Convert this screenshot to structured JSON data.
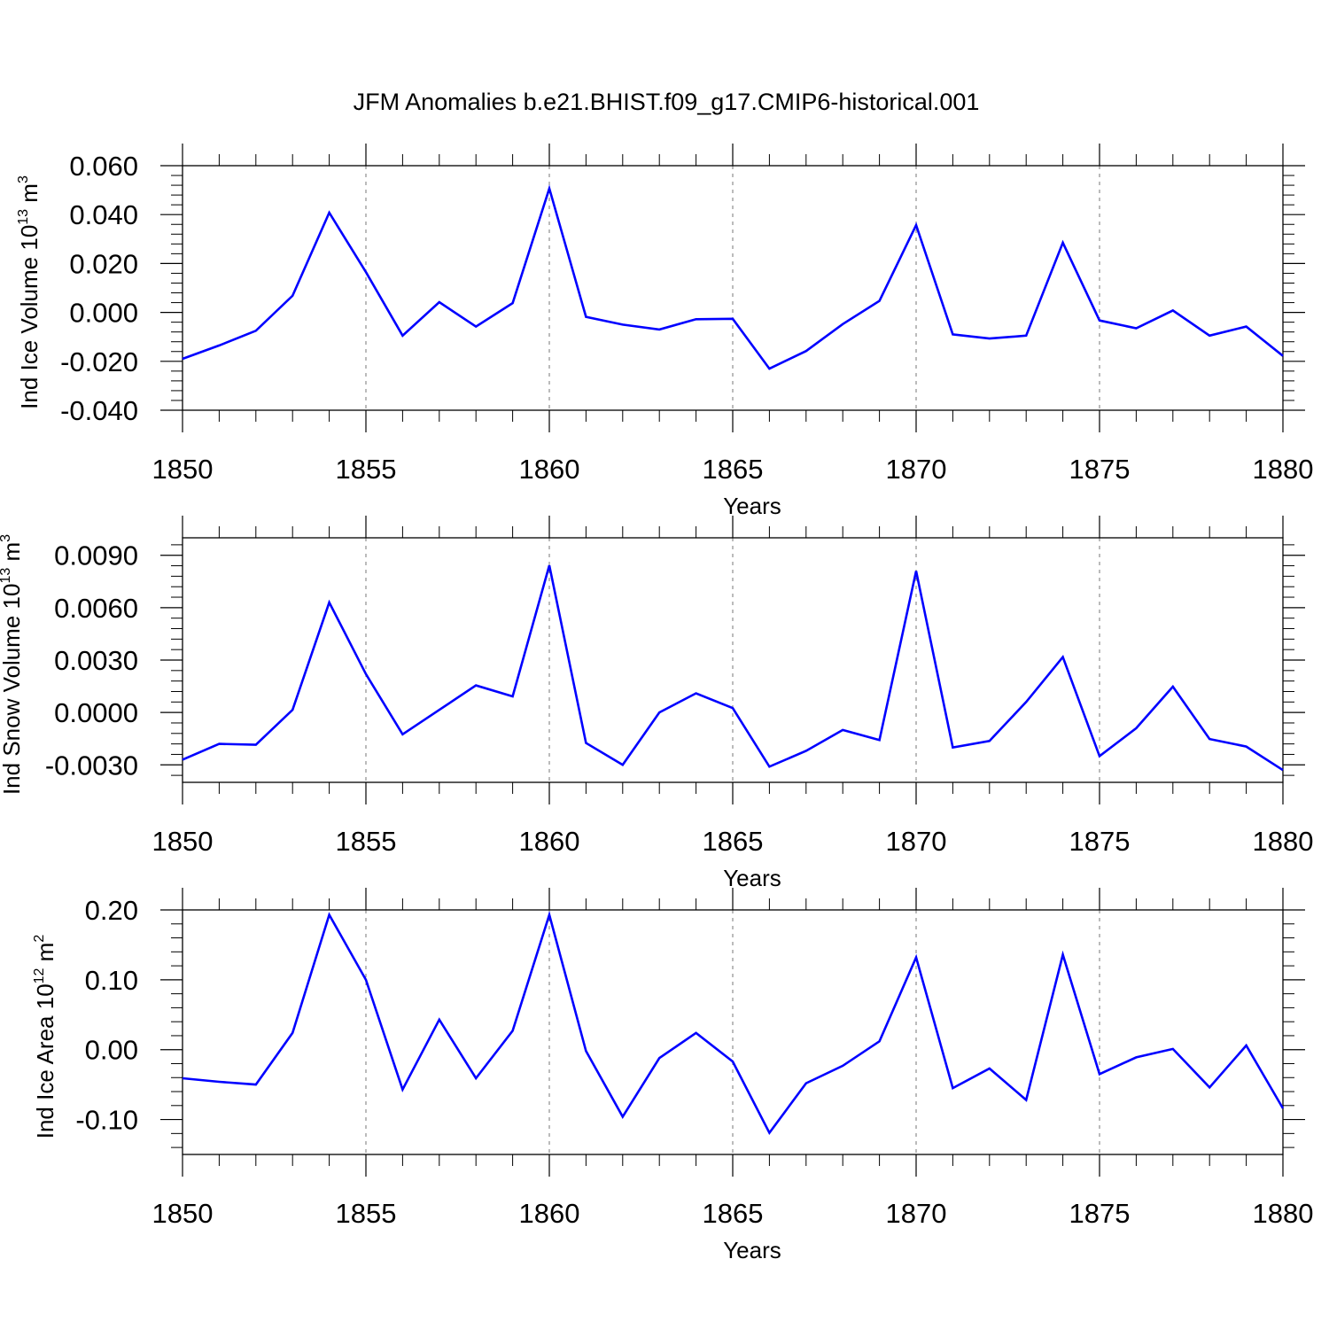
{
  "title": "JFM Anomalies b.e21.BHIST.f09_g17.CMIP6-historical.001",
  "colors": {
    "series": "#0000ff",
    "axis": "#000000",
    "grid": "#777777"
  },
  "chart_data": [
    {
      "type": "line",
      "ylabel": "Ind Ice Volume 10",
      "ylabel_exp": "13",
      "ylabel_unit": " m",
      "ylabel_unit_exp": "3",
      "xlabel": "Years",
      "xlim": [
        1850,
        1880
      ],
      "ylim": [
        -0.04,
        0.06
      ],
      "yticks": [
        -0.04,
        -0.02,
        0.0,
        0.02,
        0.04,
        0.06
      ],
      "yticklabels": [
        "-0.040",
        "-0.020",
        "0.000",
        "0.020",
        "0.040",
        "0.060"
      ],
      "xticks": [
        1850,
        1855,
        1860,
        1865,
        1870,
        1875,
        1880
      ],
      "xticklabels": [
        "1850",
        "1855",
        "1860",
        "1865",
        "1870",
        "1875",
        "1880"
      ],
      "x": [
        1850,
        1851,
        1852,
        1853,
        1854,
        1855,
        1856,
        1857,
        1858,
        1859,
        1860,
        1861,
        1862,
        1863,
        1864,
        1865,
        1866,
        1867,
        1868,
        1869,
        1870,
        1871,
        1872,
        1873,
        1874,
        1875,
        1876,
        1877,
        1878,
        1879,
        1880
      ],
      "values": [
        -0.019,
        -0.0135,
        -0.0075,
        0.0068,
        0.0408,
        0.0165,
        -0.0095,
        0.0042,
        -0.0058,
        0.0038,
        0.0507,
        -0.0018,
        -0.005,
        -0.007,
        -0.0028,
        -0.0026,
        -0.023,
        -0.0158,
        -0.0048,
        0.0047,
        0.0357,
        -0.009,
        -0.0107,
        -0.0095,
        0.0285,
        -0.0033,
        -0.0065,
        0.0008,
        -0.0095,
        -0.0058,
        -0.0178
      ]
    },
    {
      "type": "line",
      "ylabel": "Ind Snow Volume 10",
      "ylabel_exp": "13",
      "ylabel_unit": " m",
      "ylabel_unit_exp": "3",
      "xlabel": "Years",
      "xlim": [
        1850,
        1880
      ],
      "ylim": [
        -0.004,
        0.01
      ],
      "yticks": [
        -0.003,
        0.0,
        0.003,
        0.006,
        0.009
      ],
      "yticklabels": [
        "-0.0030",
        "0.0000",
        "0.0030",
        "0.0060",
        "0.0090"
      ],
      "xticks": [
        1850,
        1855,
        1860,
        1865,
        1870,
        1875,
        1880
      ],
      "xticklabels": [
        "1850",
        "1855",
        "1860",
        "1865",
        "1870",
        "1875",
        "1880"
      ],
      "x": [
        1850,
        1851,
        1852,
        1853,
        1854,
        1855,
        1856,
        1857,
        1858,
        1859,
        1860,
        1861,
        1862,
        1863,
        1864,
        1865,
        1866,
        1867,
        1868,
        1869,
        1870,
        1871,
        1872,
        1873,
        1874,
        1875,
        1876,
        1877,
        1878,
        1879,
        1880
      ],
      "values": [
        -0.0027,
        -0.0018,
        -0.00185,
        0.00015,
        0.0063,
        0.0022,
        -0.00125,
        0.00015,
        0.00155,
        0.00092,
        0.00842,
        -0.00175,
        -0.003,
        0.0,
        0.0011,
        0.00025,
        -0.0031,
        -0.0022,
        -0.001,
        -0.00158,
        0.0081,
        -0.002,
        -0.00163,
        0.0006,
        0.00317,
        -0.0025,
        -0.0009,
        0.00148,
        -0.00152,
        -0.00195,
        -0.0033
      ]
    },
    {
      "type": "line",
      "ylabel": "Ind Ice Area 10",
      "ylabel_exp": "12",
      "ylabel_unit": " m",
      "ylabel_unit_exp": "2",
      "xlabel": "Years",
      "xlim": [
        1850,
        1880
      ],
      "ylim": [
        -0.15,
        0.2
      ],
      "yticks": [
        -0.1,
        0.0,
        0.1,
        0.2
      ],
      "yticklabels": [
        "-0.10",
        "0.00",
        "0.10",
        "0.20"
      ],
      "xticks": [
        1850,
        1855,
        1860,
        1865,
        1870,
        1875,
        1880
      ],
      "xticklabels": [
        "1850",
        "1855",
        "1860",
        "1865",
        "1870",
        "1875",
        "1880"
      ],
      "x": [
        1850,
        1851,
        1852,
        1853,
        1854,
        1855,
        1856,
        1857,
        1858,
        1859,
        1860,
        1861,
        1862,
        1863,
        1864,
        1865,
        1866,
        1867,
        1868,
        1869,
        1870,
        1871,
        1872,
        1873,
        1874,
        1875,
        1876,
        1877,
        1878,
        1879,
        1880
      ],
      "values": [
        -0.041,
        -0.046,
        -0.05,
        0.024,
        0.193,
        0.1,
        -0.057,
        0.043,
        -0.041,
        0.027,
        0.193,
        -0.002,
        -0.096,
        -0.012,
        0.024,
        -0.017,
        -0.119,
        -0.048,
        -0.023,
        0.012,
        0.132,
        -0.055,
        -0.027,
        -0.072,
        0.136,
        -0.035,
        -0.011,
        0.001,
        -0.054,
        0.006,
        -0.084
      ]
    }
  ]
}
